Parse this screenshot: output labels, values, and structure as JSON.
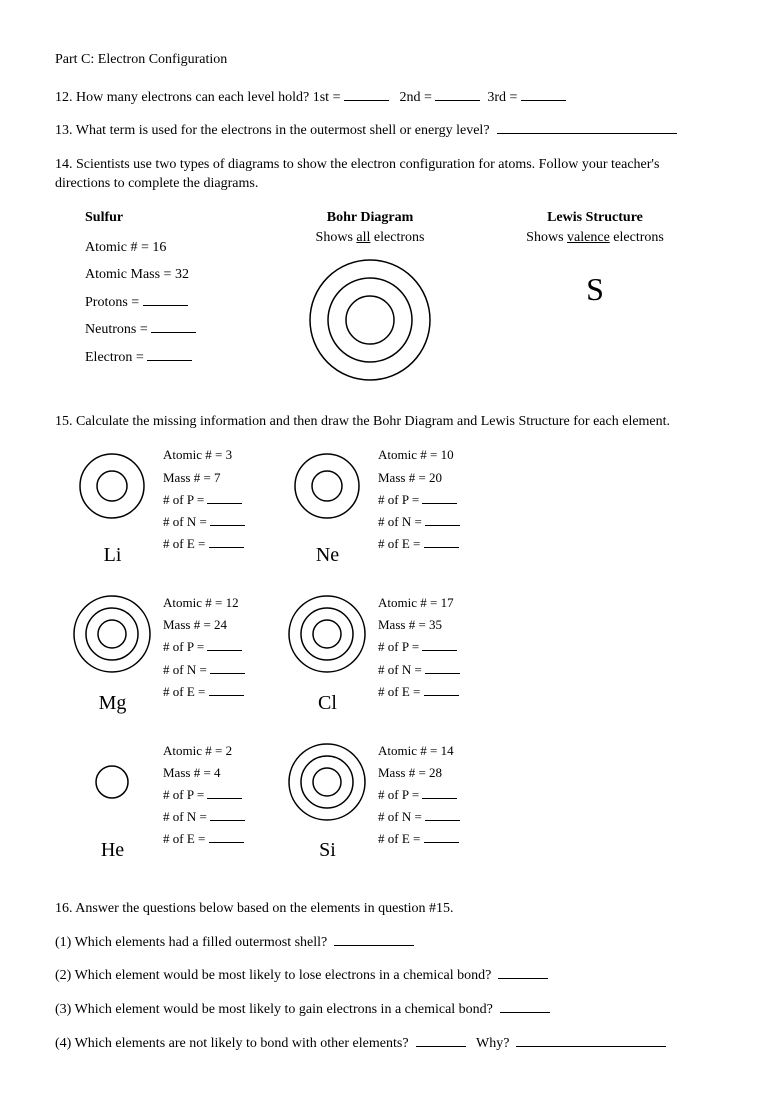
{
  "partTitle": "Part C:  Electron Configuration",
  "q12a": "12. How many electrons can each level hold?  1st =",
  "q12b": "2nd =",
  "q12c": "3rd =",
  "q13": "13. What term is used for the electrons in the outermost shell or energy level?",
  "q14": "14. Scientists use two types of diagrams to show the electron configuration for atoms.  Follow your teacher's directions to complete the diagrams.",
  "sulfur": {
    "name": "Sulfur",
    "r1": "Atomic # = 16",
    "r2": "Atomic Mass = 32",
    "r3": "Protons =",
    "r4": "Neutrons =",
    "r5": "Electron ="
  },
  "bohr": {
    "title": "Bohr Diagram",
    "sub1": "Shows ",
    "subU": "all",
    "sub2": " electrons"
  },
  "lewis": {
    "title": "Lewis Structure",
    "sub1": "Shows ",
    "subU": "valence",
    "sub2": " electrons",
    "symbol": "S"
  },
  "q15": "15. Calculate the missing information and then draw the Bohr Diagram and Lewis Structure for each element.",
  "labels": {
    "p": "# of P =",
    "n": "# of N =",
    "e": "# of E ="
  },
  "elements": [
    {
      "sym": "Li",
      "atomic": "Atomic # = 3",
      "mass": "Mass # = 7",
      "rings": 2
    },
    {
      "sym": "Ne",
      "atomic": "Atomic # = 10",
      "mass": "Mass # = 20",
      "rings": 2
    },
    {
      "sym": "Mg",
      "atomic": "Atomic # = 12",
      "mass": "Mass # = 24",
      "rings": 3
    },
    {
      "sym": "Cl",
      "atomic": "Atomic # = 17",
      "mass": "Mass # = 35",
      "rings": 3
    },
    {
      "sym": "He",
      "atomic": "Atomic # = 2",
      "mass": "Mass # = 4",
      "rings": 1
    },
    {
      "sym": "Si",
      "atomic": "Atomic # = 14",
      "mass": "Mass # = 28",
      "rings": 3
    }
  ],
  "q16": "16.  Answer the questions below based on the elements in question #15.",
  "sq1": "(1) Which elements had a filled outermost shell?",
  "sq2": "(2) Which element would be most likely to lose electrons in a chemical bond?",
  "sq3": "(3) Which element would be most likely to gain electrons in a chemical bond?",
  "sq4a": "(4) Which elements are not likely to bond with other elements?",
  "sq4b": "Why?",
  "svg": {
    "stroke": "#000",
    "sw": 1.5
  }
}
